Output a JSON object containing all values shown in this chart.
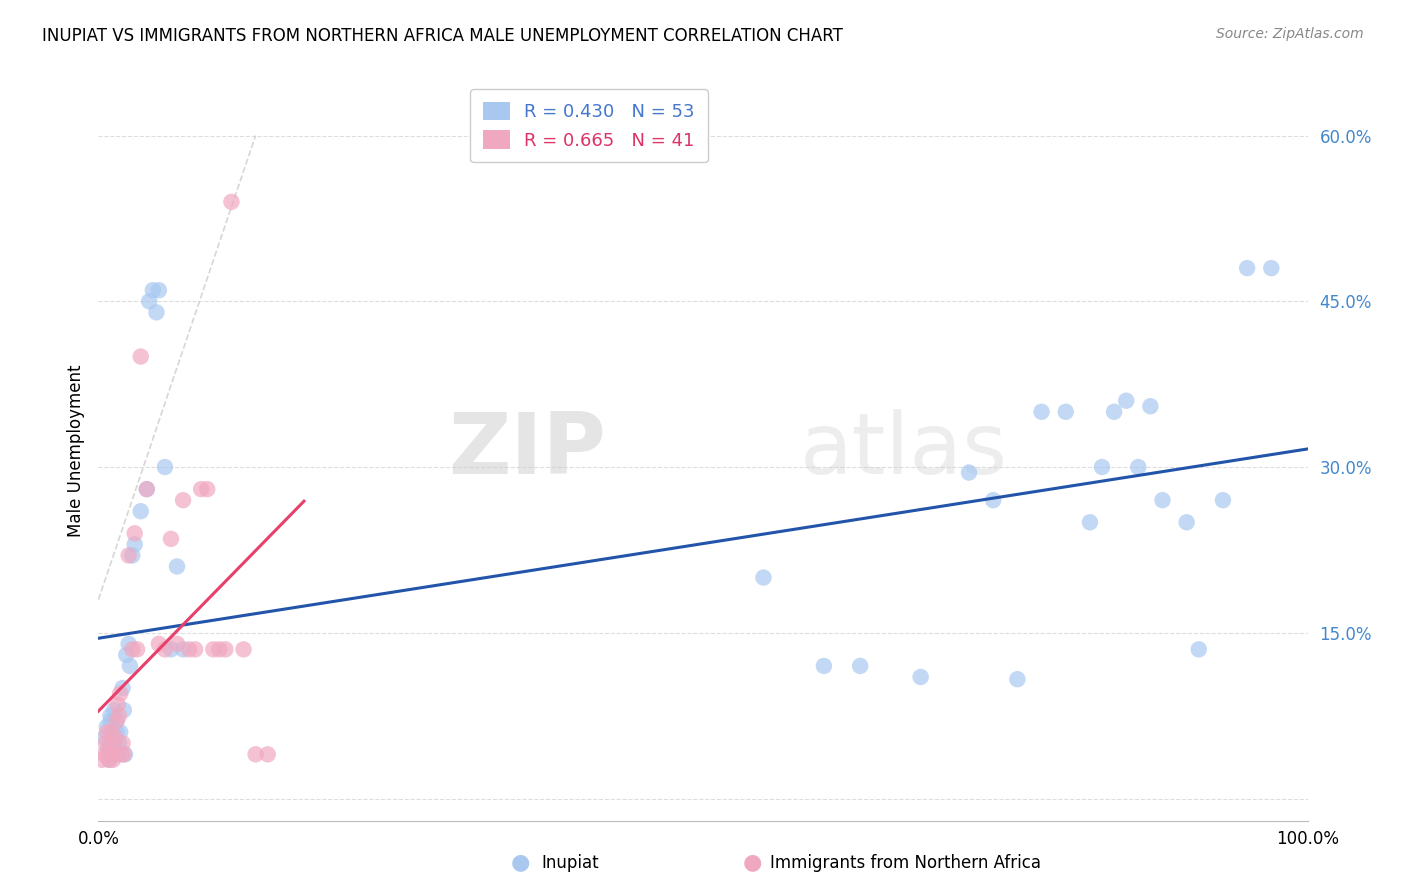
{
  "title": "INUPIAT VS IMMIGRANTS FROM NORTHERN AFRICA MALE UNEMPLOYMENT CORRELATION CHART",
  "source": "Source: ZipAtlas.com",
  "ylabel": "Male Unemployment",
  "yticks": [
    0.0,
    0.15,
    0.3,
    0.45,
    0.6
  ],
  "ytick_labels": [
    "",
    "15.0%",
    "30.0%",
    "45.0%",
    "60.0%"
  ],
  "xlim": [
    0.0,
    1.0
  ],
  "ylim": [
    -0.02,
    0.65
  ],
  "inupiat_R": 0.43,
  "inupiat_N": 53,
  "immigrant_R": 0.665,
  "immigrant_N": 41,
  "inupiat_color": "#a8c8f0",
  "immigrant_color": "#f0a8c0",
  "inupiat_line_color": "#2255aa",
  "immigrant_line_color": "#e8406a",
  "legend_inupiat_label": "Inupiat",
  "legend_immigrant_label": "Immigrants from Northern Africa",
  "watermark_zip": "ZIP",
  "watermark_atlas": "atlas",
  "inupiat_x": [
    0.005,
    0.007,
    0.008,
    0.009,
    0.01,
    0.01,
    0.012,
    0.013,
    0.014,
    0.015,
    0.015,
    0.016,
    0.017,
    0.018,
    0.02,
    0.021,
    0.022,
    0.023,
    0.025,
    0.026,
    0.028,
    0.03,
    0.035,
    0.04,
    0.042,
    0.045,
    0.048,
    0.05,
    0.055,
    0.06,
    0.065,
    0.07,
    0.55,
    0.6,
    0.63,
    0.68,
    0.72,
    0.74,
    0.76,
    0.78,
    0.8,
    0.82,
    0.83,
    0.84,
    0.85,
    0.86,
    0.87,
    0.88,
    0.9,
    0.91,
    0.93,
    0.95,
    0.97
  ],
  "inupiat_y": [
    0.055,
    0.065,
    0.045,
    0.035,
    0.07,
    0.075,
    0.06,
    0.08,
    0.05,
    0.06,
    0.07,
    0.04,
    0.05,
    0.06,
    0.1,
    0.08,
    0.04,
    0.13,
    0.14,
    0.12,
    0.22,
    0.23,
    0.26,
    0.28,
    0.45,
    0.46,
    0.44,
    0.46,
    0.3,
    0.135,
    0.21,
    0.135,
    0.2,
    0.12,
    0.12,
    0.11,
    0.295,
    0.27,
    0.108,
    0.35,
    0.35,
    0.25,
    0.3,
    0.35,
    0.36,
    0.3,
    0.355,
    0.27,
    0.25,
    0.135,
    0.27,
    0.48,
    0.48
  ],
  "immigrant_x": [
    0.003,
    0.005,
    0.006,
    0.007,
    0.008,
    0.009,
    0.01,
    0.01,
    0.011,
    0.012,
    0.013,
    0.014,
    0.015,
    0.016,
    0.017,
    0.018,
    0.019,
    0.02,
    0.021,
    0.025,
    0.028,
    0.03,
    0.032,
    0.035,
    0.04,
    0.05,
    0.055,
    0.06,
    0.065,
    0.07,
    0.075,
    0.08,
    0.085,
    0.09,
    0.095,
    0.1,
    0.105,
    0.11,
    0.12,
    0.13,
    0.14
  ],
  "immigrant_y": [
    0.035,
    0.04,
    0.05,
    0.06,
    0.04,
    0.035,
    0.05,
    0.04,
    0.06,
    0.035,
    0.04,
    0.055,
    0.07,
    0.085,
    0.075,
    0.095,
    0.04,
    0.05,
    0.04,
    0.22,
    0.135,
    0.24,
    0.135,
    0.4,
    0.28,
    0.14,
    0.135,
    0.235,
    0.14,
    0.27,
    0.135,
    0.135,
    0.28,
    0.28,
    0.135,
    0.135,
    0.135,
    0.54,
    0.135,
    0.04,
    0.04
  ],
  "grid_color": "#dddddd",
  "tick_color": "#4488cc",
  "title_fontsize": 12,
  "source_fontsize": 10
}
